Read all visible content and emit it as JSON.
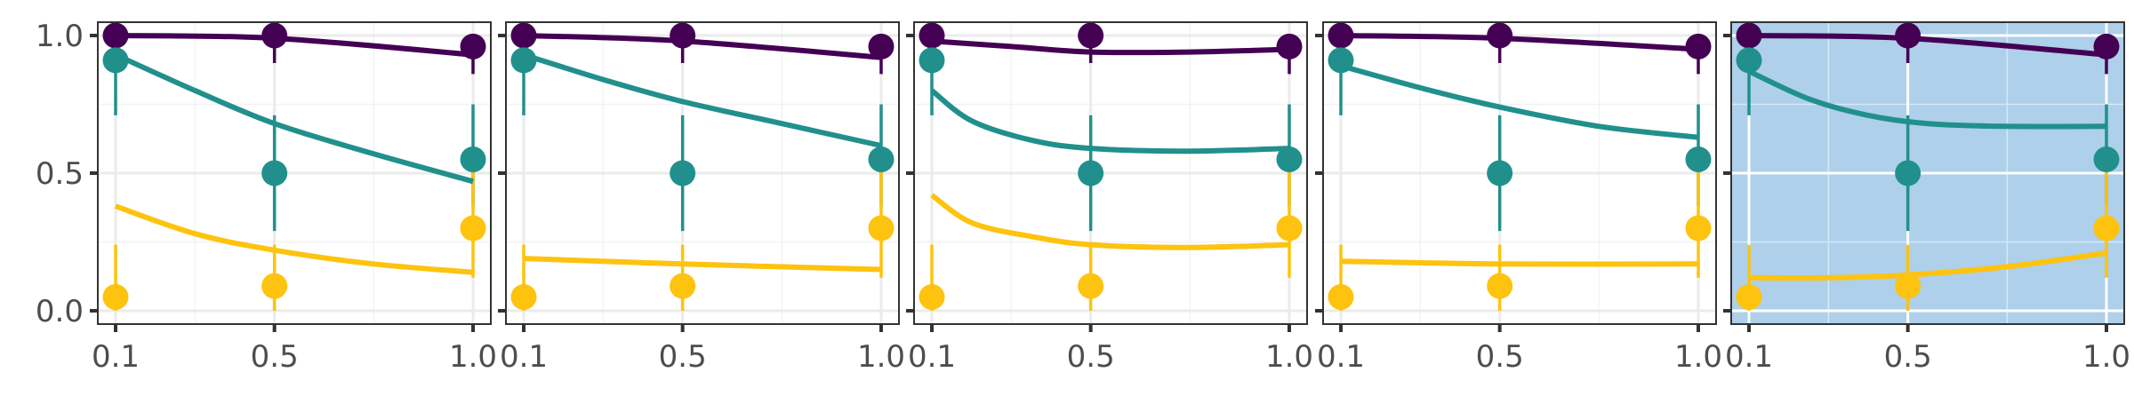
{
  "chart_data": [
    {
      "type": "line",
      "xlim": [
        0.1,
        1.0
      ],
      "ylim": [
        0.0,
        1.0
      ],
      "x_ticks": [
        "0.1",
        "0.5",
        "1.0"
      ],
      "y_ticks": [
        "0.0",
        "0.5",
        "1.0"
      ],
      "grid": true,
      "background": "#ffffff",
      "observed": [
        {
          "color": "#440154",
          "points": [
            {
              "x": 0.1,
              "y": 1.0,
              "lo": 0.93,
              "hi": 1.0
            },
            {
              "x": 0.5,
              "y": 1.0,
              "lo": 0.9,
              "hi": 1.0
            },
            {
              "x": 1.0,
              "y": 0.96,
              "lo": 0.86,
              "hi": 1.0
            }
          ]
        },
        {
          "color": "#21908c",
          "points": [
            {
              "x": 0.1,
              "y": 0.91,
              "lo": 0.71,
              "hi": 0.98
            },
            {
              "x": 0.5,
              "y": 0.5,
              "lo": 0.29,
              "hi": 0.71
            },
            {
              "x": 1.0,
              "y": 0.55,
              "lo": 0.38,
              "hi": 0.75
            }
          ]
        },
        {
          "color": "#fdc30f",
          "points": [
            {
              "x": 0.1,
              "y": 0.05,
              "lo": 0.0,
              "hi": 0.24
            },
            {
              "x": 0.5,
              "y": 0.09,
              "lo": 0.0,
              "hi": 0.24
            },
            {
              "x": 1.0,
              "y": 0.3,
              "lo": 0.12,
              "hi": 0.51
            }
          ]
        }
      ],
      "fitted": [
        {
          "color": "#440154",
          "x": [
            0.1,
            0.5,
            1.0
          ],
          "y": [
            1.0,
            0.99,
            0.93
          ]
        },
        {
          "color": "#21908c",
          "x": [
            0.1,
            0.3,
            0.5,
            0.75,
            1.0
          ],
          "y": [
            0.93,
            0.8,
            0.68,
            0.57,
            0.47
          ]
        },
        {
          "color": "#fdc30f",
          "x": [
            0.1,
            0.3,
            0.5,
            0.75,
            1.0
          ],
          "y": [
            0.38,
            0.28,
            0.22,
            0.17,
            0.14
          ]
        }
      ]
    },
    {
      "type": "line",
      "xlim": [
        0.1,
        1.0
      ],
      "ylim": [
        0.0,
        1.0
      ],
      "x_ticks": [
        "0.1",
        "0.5",
        "1.0"
      ],
      "y_ticks": [
        "0.0",
        "0.5",
        "1.0"
      ],
      "grid": true,
      "background": "#ffffff",
      "observed": [
        {
          "color": "#440154",
          "points": [
            {
              "x": 0.1,
              "y": 1.0,
              "lo": 0.93,
              "hi": 1.0
            },
            {
              "x": 0.5,
              "y": 1.0,
              "lo": 0.9,
              "hi": 1.0
            },
            {
              "x": 1.0,
              "y": 0.96,
              "lo": 0.86,
              "hi": 1.0
            }
          ]
        },
        {
          "color": "#21908c",
          "points": [
            {
              "x": 0.1,
              "y": 0.91,
              "lo": 0.71,
              "hi": 0.98
            },
            {
              "x": 0.5,
              "y": 0.5,
              "lo": 0.29,
              "hi": 0.71
            },
            {
              "x": 1.0,
              "y": 0.55,
              "lo": 0.38,
              "hi": 0.75
            }
          ]
        },
        {
          "color": "#fdc30f",
          "points": [
            {
              "x": 0.1,
              "y": 0.05,
              "lo": 0.0,
              "hi": 0.24
            },
            {
              "x": 0.5,
              "y": 0.09,
              "lo": 0.0,
              "hi": 0.24
            },
            {
              "x": 1.0,
              "y": 0.3,
              "lo": 0.12,
              "hi": 0.51
            }
          ]
        }
      ],
      "fitted": [
        {
          "color": "#440154",
          "x": [
            0.1,
            0.5,
            1.0
          ],
          "y": [
            1.0,
            0.98,
            0.92
          ]
        },
        {
          "color": "#21908c",
          "x": [
            0.1,
            0.3,
            0.5,
            0.75,
            1.0
          ],
          "y": [
            0.93,
            0.84,
            0.76,
            0.68,
            0.6
          ]
        },
        {
          "color": "#fdc30f",
          "x": [
            0.1,
            0.5,
            1.0
          ],
          "y": [
            0.19,
            0.17,
            0.15
          ]
        }
      ]
    },
    {
      "type": "line",
      "xlim": [
        0.1,
        1.0
      ],
      "ylim": [
        0.0,
        1.0
      ],
      "x_ticks": [
        "0.1",
        "0.5",
        "1.0"
      ],
      "y_ticks": [
        "0.0",
        "0.5",
        "1.0"
      ],
      "grid": true,
      "background": "#ffffff",
      "observed": [
        {
          "color": "#440154",
          "points": [
            {
              "x": 0.1,
              "y": 1.0,
              "lo": 0.93,
              "hi": 1.0
            },
            {
              "x": 0.5,
              "y": 1.0,
              "lo": 0.9,
              "hi": 1.0
            },
            {
              "x": 1.0,
              "y": 0.96,
              "lo": 0.86,
              "hi": 1.0
            }
          ]
        },
        {
          "color": "#21908c",
          "points": [
            {
              "x": 0.1,
              "y": 0.91,
              "lo": 0.71,
              "hi": 0.98
            },
            {
              "x": 0.5,
              "y": 0.5,
              "lo": 0.29,
              "hi": 0.71
            },
            {
              "x": 1.0,
              "y": 0.55,
              "lo": 0.38,
              "hi": 0.75
            }
          ]
        },
        {
          "color": "#fdc30f",
          "points": [
            {
              "x": 0.1,
              "y": 0.05,
              "lo": 0.0,
              "hi": 0.24
            },
            {
              "x": 0.5,
              "y": 0.09,
              "lo": 0.0,
              "hi": 0.24
            },
            {
              "x": 1.0,
              "y": 0.3,
              "lo": 0.12,
              "hi": 0.51
            }
          ]
        }
      ],
      "fitted": [
        {
          "color": "#440154",
          "x": [
            0.1,
            0.3,
            0.5,
            0.75,
            1.0
          ],
          "y": [
            0.98,
            0.96,
            0.94,
            0.94,
            0.95
          ]
        },
        {
          "color": "#21908c",
          "x": [
            0.1,
            0.2,
            0.35,
            0.5,
            0.75,
            1.0
          ],
          "y": [
            0.8,
            0.69,
            0.62,
            0.59,
            0.58,
            0.59
          ]
        },
        {
          "color": "#fdc30f",
          "x": [
            0.1,
            0.2,
            0.35,
            0.5,
            0.75,
            1.0
          ],
          "y": [
            0.42,
            0.32,
            0.27,
            0.24,
            0.23,
            0.24
          ]
        }
      ]
    },
    {
      "type": "line",
      "xlim": [
        0.1,
        1.0
      ],
      "ylim": [
        0.0,
        1.0
      ],
      "x_ticks": [
        "0.1",
        "0.5",
        "1.0"
      ],
      "y_ticks": [
        "0.0",
        "0.5",
        "1.0"
      ],
      "grid": true,
      "background": "#ffffff",
      "observed": [
        {
          "color": "#440154",
          "points": [
            {
              "x": 0.1,
              "y": 1.0,
              "lo": 0.93,
              "hi": 1.0
            },
            {
              "x": 0.5,
              "y": 1.0,
              "lo": 0.9,
              "hi": 1.0
            },
            {
              "x": 1.0,
              "y": 0.96,
              "lo": 0.86,
              "hi": 1.0
            }
          ]
        },
        {
          "color": "#21908c",
          "points": [
            {
              "x": 0.1,
              "y": 0.91,
              "lo": 0.71,
              "hi": 0.98
            },
            {
              "x": 0.5,
              "y": 0.5,
              "lo": 0.29,
              "hi": 0.71
            },
            {
              "x": 1.0,
              "y": 0.55,
              "lo": 0.38,
              "hi": 0.75
            }
          ]
        },
        {
          "color": "#fdc30f",
          "points": [
            {
              "x": 0.1,
              "y": 0.05,
              "lo": 0.0,
              "hi": 0.24
            },
            {
              "x": 0.5,
              "y": 0.09,
              "lo": 0.0,
              "hi": 0.24
            },
            {
              "x": 1.0,
              "y": 0.3,
              "lo": 0.12,
              "hi": 0.51
            }
          ]
        }
      ],
      "fitted": [
        {
          "color": "#440154",
          "x": [
            0.1,
            0.5,
            1.0
          ],
          "y": [
            1.0,
            0.99,
            0.95
          ]
        },
        {
          "color": "#21908c",
          "x": [
            0.1,
            0.3,
            0.5,
            0.75,
            1.0
          ],
          "y": [
            0.89,
            0.81,
            0.74,
            0.67,
            0.63
          ]
        },
        {
          "color": "#fdc30f",
          "x": [
            0.1,
            0.5,
            1.0
          ],
          "y": [
            0.18,
            0.17,
            0.17
          ]
        }
      ]
    },
    {
      "type": "line",
      "xlim": [
        0.1,
        1.0
      ],
      "ylim": [
        0.0,
        1.0
      ],
      "x_ticks": [
        "0.1",
        "0.5",
        "1.0"
      ],
      "y_ticks": [
        "0.0",
        "0.5",
        "1.0"
      ],
      "grid": true,
      "background": "#aed0ea",
      "observed": [
        {
          "color": "#440154",
          "points": [
            {
              "x": 0.1,
              "y": 1.0,
              "lo": 0.93,
              "hi": 1.0
            },
            {
              "x": 0.5,
              "y": 1.0,
              "lo": 0.9,
              "hi": 1.0
            },
            {
              "x": 1.0,
              "y": 0.96,
              "lo": 0.86,
              "hi": 1.0
            }
          ]
        },
        {
          "color": "#21908c",
          "points": [
            {
              "x": 0.1,
              "y": 0.91,
              "lo": 0.71,
              "hi": 0.98
            },
            {
              "x": 0.5,
              "y": 0.5,
              "lo": 0.29,
              "hi": 0.71
            },
            {
              "x": 1.0,
              "y": 0.55,
              "lo": 0.38,
              "hi": 0.75
            }
          ]
        },
        {
          "color": "#fdc30f",
          "points": [
            {
              "x": 0.1,
              "y": 0.05,
              "lo": 0.0,
              "hi": 0.24
            },
            {
              "x": 0.5,
              "y": 0.09,
              "lo": 0.0,
              "hi": 0.24
            },
            {
              "x": 1.0,
              "y": 0.3,
              "lo": 0.12,
              "hi": 0.51
            }
          ]
        }
      ],
      "fitted": [
        {
          "color": "#440154",
          "x": [
            0.1,
            0.5,
            1.0
          ],
          "y": [
            1.0,
            0.99,
            0.93
          ]
        },
        {
          "color": "#21908c",
          "x": [
            0.1,
            0.25,
            0.4,
            0.55,
            0.75,
            1.0
          ],
          "y": [
            0.87,
            0.77,
            0.71,
            0.68,
            0.67,
            0.67
          ]
        },
        {
          "color": "#fdc30f",
          "x": [
            0.1,
            0.3,
            0.5,
            0.75,
            1.0
          ],
          "y": [
            0.12,
            0.12,
            0.13,
            0.16,
            0.21
          ]
        }
      ]
    }
  ]
}
